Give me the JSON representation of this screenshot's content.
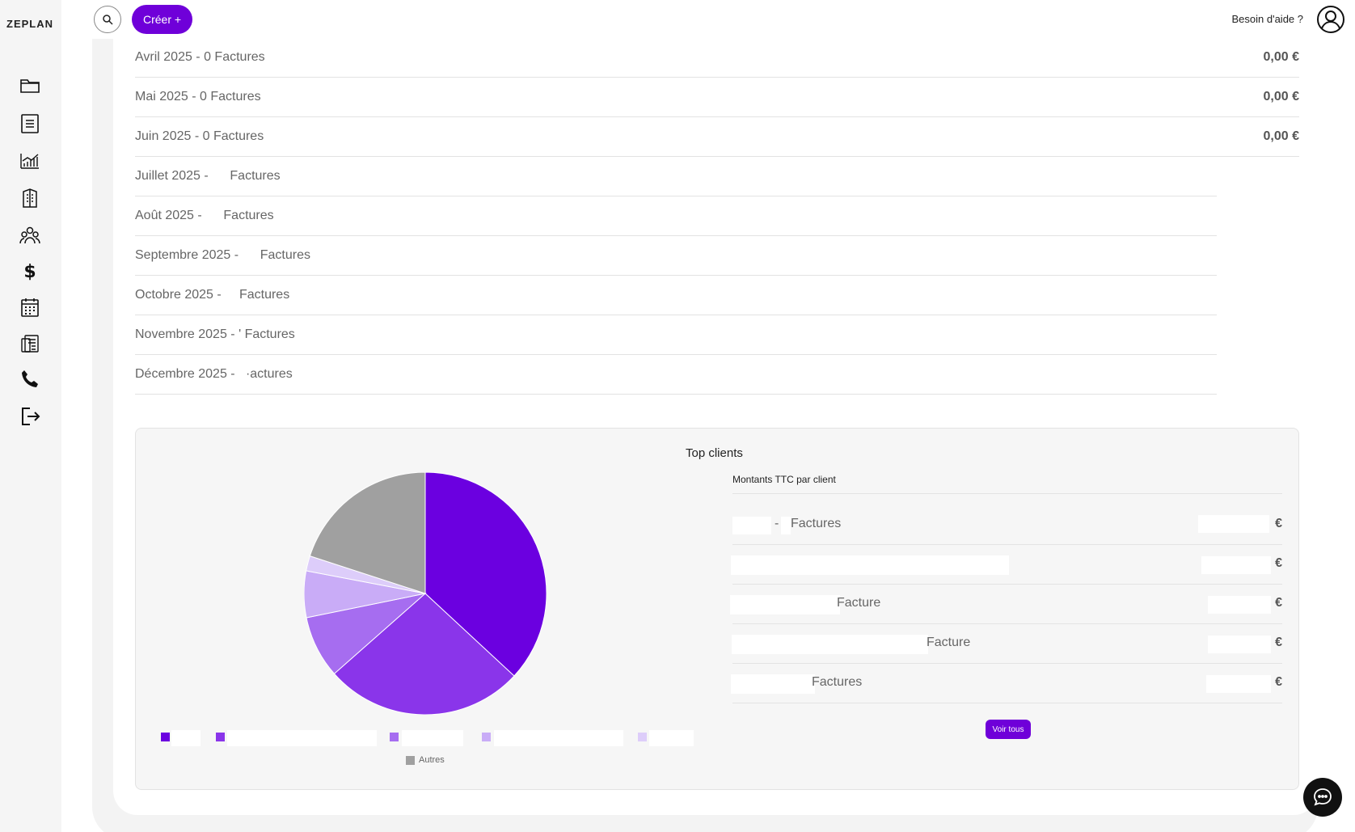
{
  "app": {
    "logo": "ZEPLAN"
  },
  "sidebar": {
    "items": [
      {
        "icon": "folder-icon"
      },
      {
        "icon": "document-list-icon"
      },
      {
        "icon": "chart-icon"
      },
      {
        "icon": "building-icon"
      },
      {
        "icon": "users-icon"
      },
      {
        "icon": "dollar-icon"
      },
      {
        "icon": "calendar-icon"
      },
      {
        "icon": "invoice-icon"
      },
      {
        "icon": "phone-icon"
      },
      {
        "icon": "logout-icon"
      }
    ]
  },
  "topbar": {
    "create_label": "Créer +",
    "help_label": "Besoin d'aide ?"
  },
  "months": [
    {
      "label": "Avril 2025 - 0 Factures",
      "amount": "0,00 €"
    },
    {
      "label": "Mai 2025 - 0 Factures",
      "amount": "0,00 €"
    },
    {
      "label": "Juin 2025 - 0 Factures",
      "amount": "0,00 €"
    },
    {
      "label": "Juillet 2025 -      Factures",
      "amount": ""
    },
    {
      "label": "Août 2025 -      Factures",
      "amount": ""
    },
    {
      "label": "Septembre 2025 -      Factures",
      "amount": ""
    },
    {
      "label": "Octobre 2025 -     Factures",
      "amount": ""
    },
    {
      "label": "Novembre 2025 - ' Factures",
      "amount": ""
    },
    {
      "label": "Décembre 2025 -   ·actures",
      "amount": ""
    }
  ],
  "top_clients": {
    "title": "Top clients",
    "subtitle": "Montants TTC par client",
    "rows": [
      {
        "name": "Factures",
        "euro": "€"
      },
      {
        "name": "",
        "euro": "€"
      },
      {
        "name": "Facture",
        "euro": "€"
      },
      {
        "name": "Facture",
        "euro": "€"
      },
      {
        "name": "Factures",
        "euro": "€"
      }
    ],
    "see_all_label": "Voir tous",
    "legend_other": "Autres",
    "colors": [
      "#6b00e0",
      "#8a35ea",
      "#a66df0",
      "#c9acf7",
      "#ddcdfa",
      "#a0a0a0"
    ]
  },
  "chart_data": {
    "type": "pie",
    "title": "",
    "labels": [
      "",
      "",
      "",
      "",
      "",
      "Autres"
    ],
    "values": [
      36.9,
      26.6,
      8.3,
      6.2,
      2.0,
      20.0
    ]
  }
}
